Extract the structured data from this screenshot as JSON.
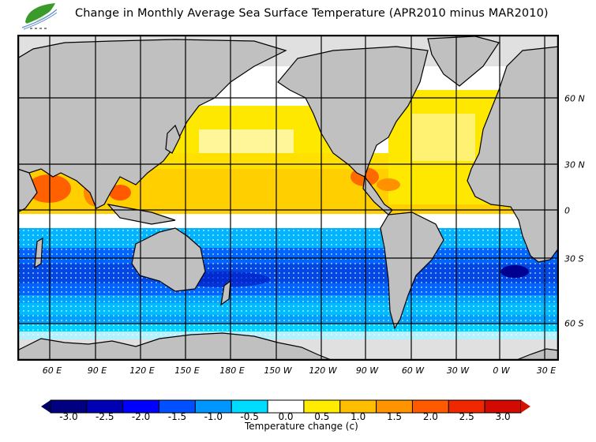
{
  "header": {
    "title": "Change in Monthly Average Sea Surface Temperature (APR2010 minus MAR2010)",
    "logo_text": "香港天文台 HKO"
  },
  "map": {
    "projection": "global, centered on 180",
    "lon_labels": [
      "60 E",
      "90 E",
      "120 E",
      "150 E",
      "180 E",
      "150 W",
      "120 W",
      "90 W",
      "60 W",
      "30 W",
      "0 W",
      "30 E"
    ],
    "lat_labels": [
      "60 N",
      "30 N",
      "0",
      "30 S",
      "60 S"
    ],
    "land_color": "#c0c0c0",
    "ice_color": "#e0e0e0",
    "ocean_nodata_color": "#ffffff"
  },
  "legend": {
    "title": "Temperature change  (c)",
    "ticks": [
      "-3.0",
      "-2.5",
      "-2.0",
      "-1.5",
      "-1.0",
      "-0.5",
      "0.0",
      "0.5",
      "1.0",
      "1.5",
      "2.0",
      "2.5",
      "3.0"
    ],
    "colors": [
      "#000080",
      "#0000b4",
      "#0000ff",
      "#0050ff",
      "#0096ff",
      "#00dcff",
      "#ffffff",
      "#ffec00",
      "#ffbe00",
      "#ff9400",
      "#ff5a00",
      "#f02800",
      "#d20a00"
    ],
    "below_color": "#000064",
    "above_color": "#d21400"
  }
}
